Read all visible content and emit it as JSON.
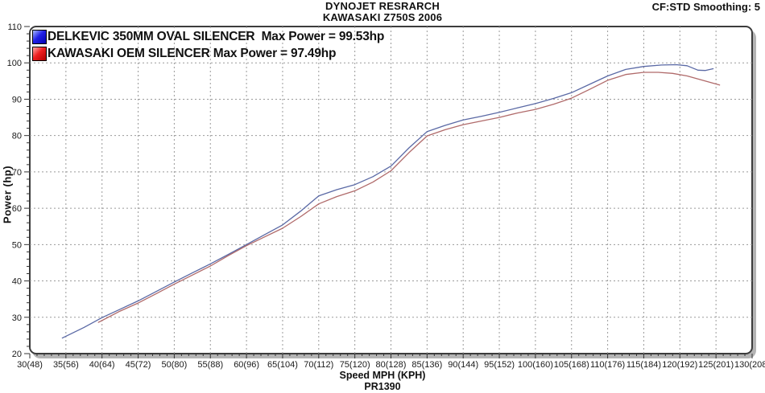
{
  "header": {
    "title_line1": "DYNOJET RESRARCH",
    "title_line2": "KAWASAKI Z750S 2006",
    "top_right": "CF:STD Smoothing: 5"
  },
  "footer": {
    "code": "PR1390"
  },
  "chart_data": {
    "type": "line",
    "title": "DYNOJET RESRARCH / KAWASAKI Z750S 2006",
    "xlabel": "Speed MPH (KPH)",
    "ylabel": "Power (hp)",
    "xlim": [
      30,
      130
    ],
    "ylim": [
      20,
      110
    ],
    "grid": "dotted",
    "grid_color": "#9a9a9a",
    "legend_position": "top-left",
    "x_ticks": [
      {
        "value": 30,
        "label": "30(48)"
      },
      {
        "value": 35,
        "label": "35(56)"
      },
      {
        "value": 40,
        "label": "40(64)"
      },
      {
        "value": 45,
        "label": "45(72)"
      },
      {
        "value": 50,
        "label": "50(80)"
      },
      {
        "value": 55,
        "label": "55(88)"
      },
      {
        "value": 60,
        "label": "60(96)"
      },
      {
        "value": 65,
        "label": "65(104)"
      },
      {
        "value": 70,
        "label": "70(112)"
      },
      {
        "value": 75,
        "label": "75(120)"
      },
      {
        "value": 80,
        "label": "80(128)"
      },
      {
        "value": 85,
        "label": "85(136)"
      },
      {
        "value": 90,
        "label": "90(144)"
      },
      {
        "value": 95,
        "label": "95(152)"
      },
      {
        "value": 100,
        "label": "100(160)"
      },
      {
        "value": 105,
        "label": "105(168)"
      },
      {
        "value": 110,
        "label": "110(176)"
      },
      {
        "value": 115,
        "label": "115(184)"
      },
      {
        "value": 120,
        "label": "120(192)"
      },
      {
        "value": 125,
        "label": "125(201)"
      },
      {
        "value": 130,
        "label": "130(208)"
      }
    ],
    "y_ticks": [
      {
        "value": 110,
        "label": "110"
      },
      {
        "value": 100,
        "label": "100"
      },
      {
        "value": 90,
        "label": "90"
      },
      {
        "value": 80,
        "label": "80"
      },
      {
        "value": 70,
        "label": "70"
      },
      {
        "value": 60,
        "label": "60"
      },
      {
        "value": 50,
        "label": "50"
      },
      {
        "value": 40,
        "label": "40"
      },
      {
        "value": 30,
        "label": "30"
      },
      {
        "value": 20,
        "label": "20"
      }
    ],
    "x_minor_step": 1,
    "y_minor_step": 2,
    "series": [
      {
        "id": "delkevic",
        "name": "DELKEVIC 350MM OVAL SILENCER",
        "legend_label": "DELKEVIC 350MM OVAL SILENCER  Max Power = 99.53hp",
        "max_power_hp": 99.53,
        "swatch_color": "#0000cc",
        "line_color": "#5a69a5",
        "x": [
          34.5,
          37.5,
          40,
          42.5,
          45,
          47.5,
          50,
          52.5,
          55,
          57.5,
          60,
          62.5,
          65,
          67.5,
          70,
          72.5,
          75,
          77.5,
          80,
          82.5,
          85,
          87.5,
          90,
          92.5,
          95,
          97.5,
          100,
          102.5,
          105,
          107.5,
          110,
          112.5,
          115,
          117.5,
          119.5,
          121,
          122.5,
          123.5,
          124.6
        ],
        "y": [
          24.3,
          27.2,
          29.9,
          32.2,
          34.5,
          37.1,
          39.7,
          42.2,
          44.7,
          47.3,
          50.0,
          52.7,
          55.4,
          59.2,
          63.4,
          65.1,
          66.5,
          68.7,
          71.6,
          76.6,
          81.1,
          82.8,
          84.3,
          85.3,
          86.4,
          87.6,
          88.8,
          90.2,
          91.8,
          94.1,
          96.4,
          98.2,
          99.0,
          99.4,
          99.5,
          99.2,
          98.0,
          97.9,
          98.4
        ]
      },
      {
        "id": "oem",
        "name": "KAWASAKI OEM SILENCER",
        "legend_label": "KAWASAKI OEM SILENCER Max Power = 97.49hp",
        "max_power_hp": 97.49,
        "swatch_color": "#cc0000",
        "line_color": "#b06a6a",
        "x": [
          39.5,
          42.5,
          45,
          47.5,
          50,
          52.5,
          55,
          57.5,
          60,
          62.5,
          65,
          67.5,
          70,
          72.5,
          75,
          77.5,
          80,
          82.5,
          85,
          87.5,
          90,
          92.5,
          95,
          97.5,
          100,
          102.5,
          105,
          107.5,
          110,
          112.5,
          115,
          117,
          119,
          121,
          123,
          125,
          125.5
        ],
        "y": [
          28.6,
          31.7,
          33.9,
          36.5,
          39.1,
          41.6,
          44.1,
          47.0,
          49.7,
          52.1,
          54.5,
          57.7,
          61.2,
          63.2,
          64.8,
          67.2,
          70.3,
          75.3,
          79.9,
          81.6,
          83.0,
          84.0,
          85.0,
          86.2,
          87.2,
          88.6,
          90.3,
          92.7,
          95.2,
          96.8,
          97.4,
          97.4,
          97.1,
          96.4,
          95.3,
          94.2,
          93.9
        ]
      }
    ]
  }
}
